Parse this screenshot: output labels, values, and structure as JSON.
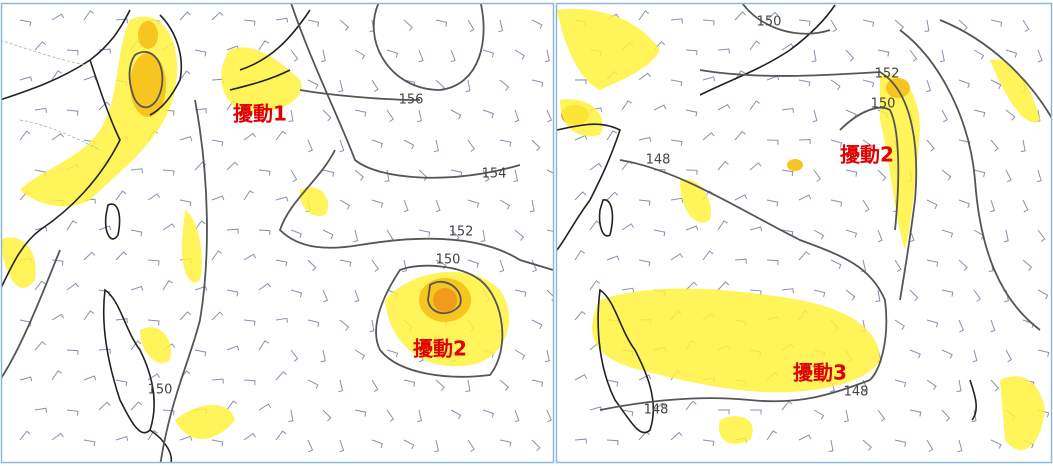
{
  "panels": [
    {
      "disturbance_labels": [
        "擾動1",
        "擾動2"
      ],
      "contour_labels": [
        "156",
        "154",
        "152",
        "150",
        "150"
      ]
    },
    {
      "disturbance_labels": [
        "擾動2",
        "擾動3"
      ],
      "contour_labels": [
        "150",
        "152",
        "150",
        "148",
        "148",
        "148"
      ]
    }
  ]
}
